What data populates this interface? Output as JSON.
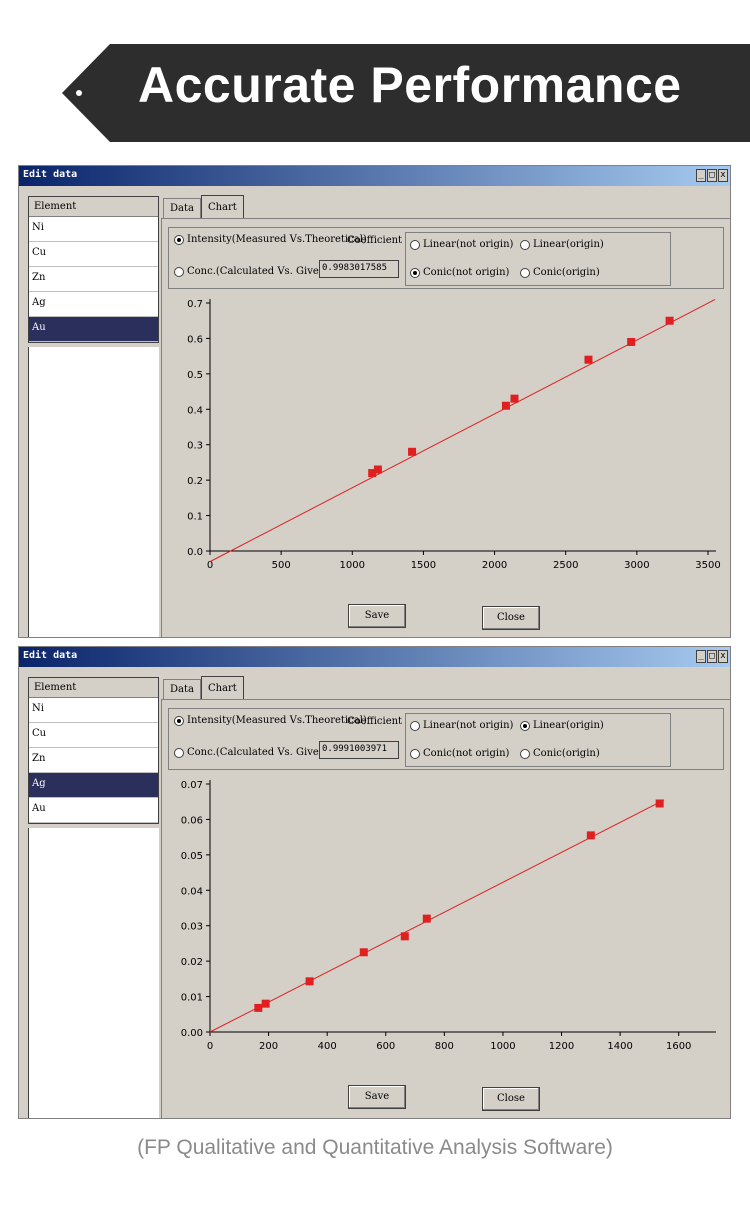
{
  "banner": {
    "title": "Accurate Performance",
    "bg": "#2d2d2d"
  },
  "caption": "(FP Qualitative and Quantitative Analysis Software)",
  "windows": [
    {
      "title": "Edit data",
      "buttons": [
        "_",
        "□",
        "x"
      ],
      "element_header": "Element",
      "elements": [
        "Ni",
        "Cu",
        "Zn",
        "Ag",
        "Au"
      ],
      "selected_index": 4,
      "tabs": [
        "Data",
        "Chart"
      ],
      "active_tab": 1,
      "intensity_label": "Intensity(Measured Vs.Theoretical)",
      "conc_label": "Conc.(Calculated Vs. Given)",
      "coefficient_label": "Coefficient",
      "coefficient_value": "0.9983017585",
      "fit_options": [
        "Linear(not origin)",
        "Linear(origin)",
        "Conic(not origin)",
        "Conic(origin)"
      ],
      "fit_selected": 2,
      "save_label": "Save",
      "close_label": "Close",
      "chart_data": {
        "type": "scatter",
        "series_color": "#e02020",
        "xlim": [
          0,
          3500
        ],
        "ylim": [
          0,
          0.7
        ],
        "xticks": [
          0,
          500,
          1000,
          1500,
          2000,
          2500,
          3000,
          3500
        ],
        "xtick_labels": [
          "0",
          "500",
          "1000",
          "1500",
          "2000",
          "2500",
          "3000",
          "3500"
        ],
        "yticks": [
          0,
          0.1,
          0.2,
          0.3,
          0.4,
          0.5,
          0.6,
          0.7
        ],
        "ytick_labels": [
          "0.0",
          "0.1",
          "0.2",
          "0.3",
          "0.4",
          "0.5",
          "0.6",
          "0.7"
        ],
        "points": [
          [
            1140,
            0.22
          ],
          [
            1180,
            0.23
          ],
          [
            1420,
            0.28
          ],
          [
            2080,
            0.41
          ],
          [
            2140,
            0.43
          ],
          [
            2660,
            0.54
          ],
          [
            2960,
            0.59
          ],
          [
            3230,
            0.65
          ]
        ],
        "fit_line": [
          [
            0,
            -0.03
          ],
          [
            3550,
            0.71
          ]
        ]
      }
    },
    {
      "title": "Edit data",
      "buttons": [
        "_",
        "□",
        "x"
      ],
      "element_header": "Element",
      "elements": [
        "Ni",
        "Cu",
        "Zn",
        "Ag",
        "Au"
      ],
      "selected_index": 3,
      "tabs": [
        "Data",
        "Chart"
      ],
      "active_tab": 1,
      "intensity_label": "Intensity(Measured Vs.Theoretical)",
      "conc_label": "Conc.(Calculated Vs. Given)",
      "coefficient_label": "Coefficient",
      "coefficient_value": "0.9991003971",
      "fit_options": [
        "Linear(not origin)",
        "Linear(origin)",
        "Conic(not origin)",
        "Conic(origin)"
      ],
      "fit_selected": 1,
      "save_label": "Save",
      "close_label": "Close",
      "chart_data": {
        "type": "scatter",
        "series_color": "#e02020",
        "xlim": [
          0,
          1700
        ],
        "ylim": [
          0,
          0.07
        ],
        "xticks": [
          0,
          200,
          400,
          600,
          800,
          1000,
          1200,
          1400,
          1600
        ],
        "xtick_labels": [
          "0",
          "200",
          "400",
          "600",
          "800",
          "1000",
          "1200",
          "1400",
          "1600"
        ],
        "yticks": [
          0,
          0.01,
          0.02,
          0.03,
          0.04,
          0.05,
          0.06,
          0.07
        ],
        "ytick_labels": [
          "0.00",
          "0.01",
          "0.02",
          "0.03",
          "0.04",
          "0.05",
          "0.06",
          "0.07"
        ],
        "points": [
          [
            165,
            0.0068
          ],
          [
            190,
            0.008
          ],
          [
            340,
            0.0143
          ],
          [
            525,
            0.0225
          ],
          [
            665,
            0.027
          ],
          [
            740,
            0.032
          ],
          [
            1300,
            0.0555
          ],
          [
            1535,
            0.0645
          ]
        ],
        "fit_line": [
          [
            0,
            0
          ],
          [
            1550,
            0.0655
          ]
        ]
      }
    }
  ]
}
